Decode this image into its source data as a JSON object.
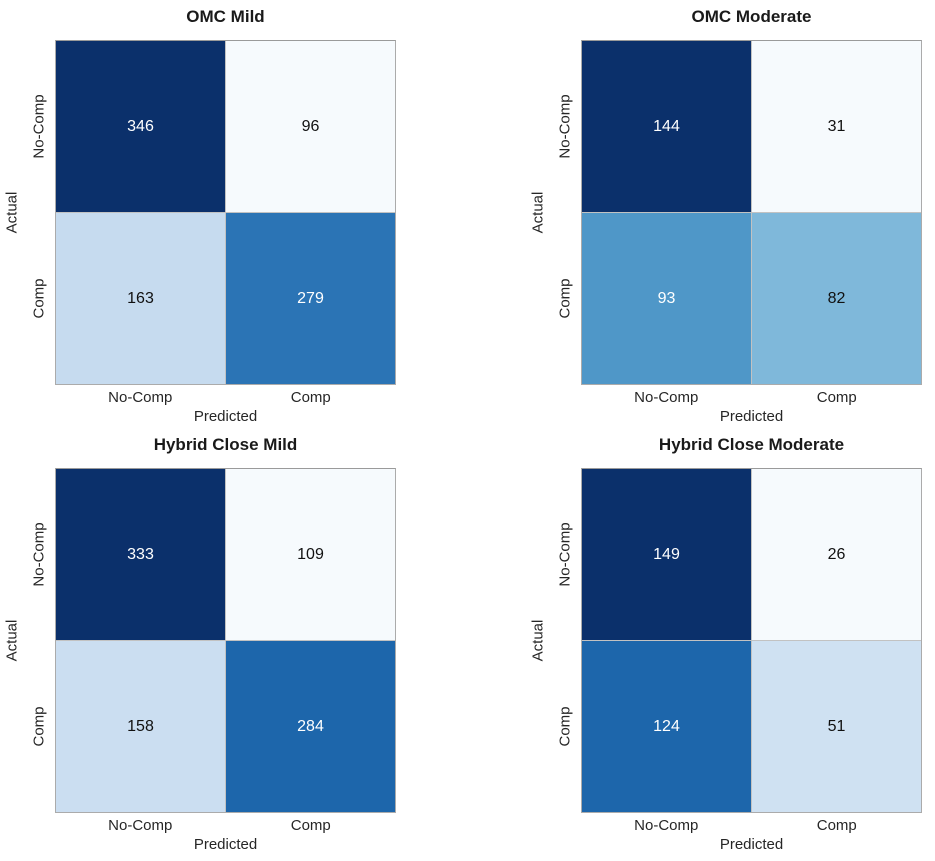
{
  "chart_data": [
    {
      "type": "heatmap",
      "title": "OMC Mild",
      "xlabel": "Predicted",
      "ylabel": "Actual",
      "x_categories": [
        "No-Comp",
        "Comp"
      ],
      "y_categories": [
        "No-Comp",
        "Comp"
      ],
      "values": [
        [
          346,
          96
        ],
        [
          163,
          279
        ]
      ],
      "cell_colors": [
        [
          "#0b306b",
          "#f6fafd"
        ],
        [
          "#c6dbef",
          "#2b74b5"
        ]
      ],
      "text_colors": [
        [
          "#ffffff",
          "#111111"
        ],
        [
          "#111111",
          "#ffffff"
        ]
      ],
      "colormap": "Blues",
      "legend_position": "none"
    },
    {
      "type": "heatmap",
      "title": "OMC Moderate",
      "xlabel": "Predicted",
      "ylabel": "Actual",
      "x_categories": [
        "No-Comp",
        "Comp"
      ],
      "y_categories": [
        "No-Comp",
        "Comp"
      ],
      "values": [
        [
          144,
          31
        ],
        [
          93,
          82
        ]
      ],
      "cell_colors": [
        [
          "#0b306b",
          "#f6fafd"
        ],
        [
          "#4f97c8",
          "#7fb8da"
        ]
      ],
      "text_colors": [
        [
          "#ffffff",
          "#111111"
        ],
        [
          "#ffffff",
          "#111111"
        ]
      ],
      "colormap": "Blues",
      "legend_position": "none"
    },
    {
      "type": "heatmap",
      "title": "Hybrid Close Mild",
      "xlabel": "Predicted",
      "ylabel": "Actual",
      "x_categories": [
        "No-Comp",
        "Comp"
      ],
      "y_categories": [
        "No-Comp",
        "Comp"
      ],
      "values": [
        [
          333,
          109
        ],
        [
          158,
          284
        ]
      ],
      "cell_colors": [
        [
          "#0b306b",
          "#f6fafd"
        ],
        [
          "#cbdef1",
          "#1d66ab"
        ]
      ],
      "text_colors": [
        [
          "#ffffff",
          "#111111"
        ],
        [
          "#111111",
          "#ffffff"
        ]
      ],
      "colormap": "Blues",
      "legend_position": "none"
    },
    {
      "type": "heatmap",
      "title": "Hybrid Close Moderate",
      "xlabel": "Predicted",
      "ylabel": "Actual",
      "x_categories": [
        "No-Comp",
        "Comp"
      ],
      "y_categories": [
        "No-Comp",
        "Comp"
      ],
      "values": [
        [
          149,
          26
        ],
        [
          124,
          51
        ]
      ],
      "cell_colors": [
        [
          "#0b306b",
          "#f6fafd"
        ],
        [
          "#1d66ab",
          "#cfe1f2"
        ]
      ],
      "text_colors": [
        [
          "#ffffff",
          "#111111"
        ],
        [
          "#ffffff",
          "#111111"
        ]
      ],
      "colormap": "Blues",
      "legend_position": "none"
    }
  ]
}
